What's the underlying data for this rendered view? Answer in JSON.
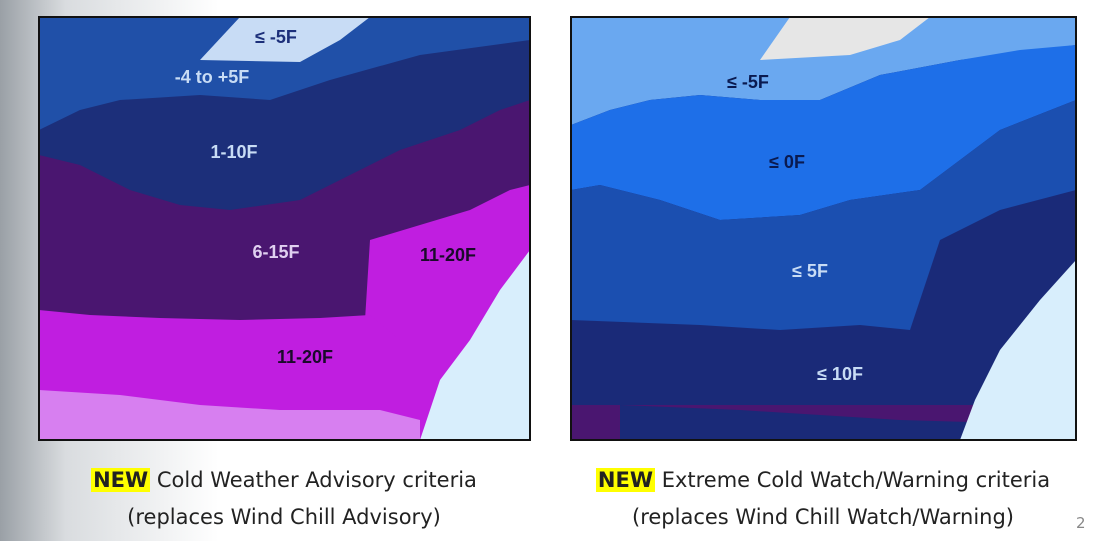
{
  "maps": [
    {
      "labels": [
        "≤ -5F",
        "-4 to +5F",
        "1-10F",
        "6-15F",
        "11-20F",
        "11-20F"
      ],
      "caption": {
        "highlight": "NEW",
        "text": "Cold Weather Advisory criteria",
        "subtext": "(replaces Wind Chill Advisory)"
      }
    },
    {
      "labels": [
        "≤ -5F",
        "≤ 0F",
        "≤ 5F",
        "≤ 10F"
      ],
      "caption": {
        "highlight": "NEW",
        "text": "Extreme Cold Watch/Warning criteria",
        "subtext": "(replaces Wind Chill Watch/Warning)"
      }
    }
  ],
  "page_number": "2"
}
